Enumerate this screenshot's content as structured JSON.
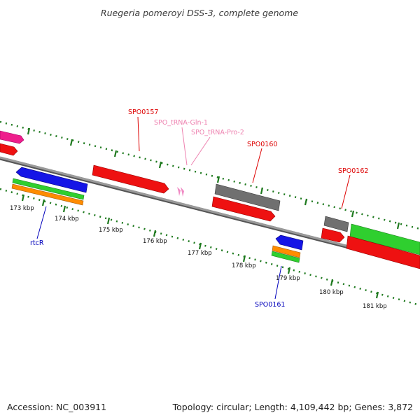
{
  "title": "Ruegeria pomeroyi DSS-3, complete genome",
  "footer": {
    "accession": "Accession: NC_003911",
    "summary": "Topology: circular; Length: 4,109,442 bp; Genes: 3,872"
  },
  "ticks": [
    "173 kbp",
    "174 kbp",
    "175 kbp",
    "176 kbp",
    "177 kbp",
    "178 kbp",
    "179 kbp",
    "180 kbp",
    "181 kbp"
  ],
  "genes": {
    "SPO0157": "SPO0157",
    "tRNA_Gln": "SPO_tRNA-Gln-1",
    "tRNA_Pro": "SPO_tRNA-Pro-2",
    "SPO0160": "SPO0160",
    "SPO0162": "SPO0162",
    "rtcR": "rtcR",
    "SPO0161": "SPO0161"
  },
  "colors": {
    "cds_red": "#ee1111",
    "cds_gray": "#707070",
    "cds_blue": "#1515e6",
    "cds_green": "#2fcf2f",
    "cds_orange": "#ff8c00",
    "cds_magenta": "#ee1e8c",
    "trna_pink": "#f08ac4",
    "label_red": "#dd0000",
    "label_pink": "#ee82b0",
    "label_blue": "#0000bb",
    "dots_green": "#1f7a1f",
    "backbone": "#888888"
  }
}
